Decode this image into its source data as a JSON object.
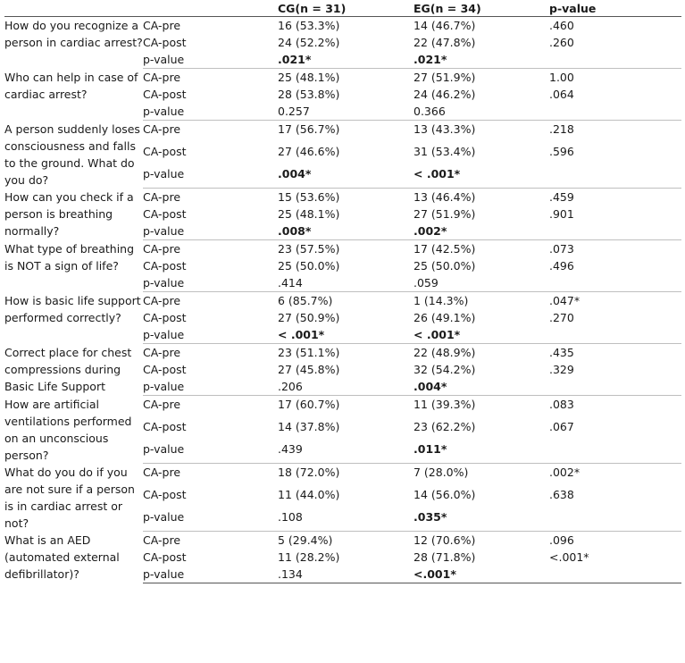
{
  "header": {
    "question": "",
    "label": "",
    "cg": "CG(n = 31)",
    "eg": "EG(n = 34)",
    "p": "p-value"
  },
  "questions": [
    {
      "text": "How do you recognize a person in cardiac arrest?",
      "rows": [
        {
          "label": "CA-pre",
          "cg": "16 (53.3%)",
          "eg": "14 (46.7%)",
          "p": ".460",
          "cg_bold": false,
          "eg_bold": false
        },
        {
          "label": "CA-post",
          "cg": "24 (52.2%)",
          "eg": "22 (47.8%)",
          "p": ".260",
          "cg_bold": false,
          "eg_bold": false
        },
        {
          "label": "p-value",
          "cg": ".021*",
          "eg": ".021*",
          "p": "",
          "cg_bold": true,
          "eg_bold": true
        }
      ]
    },
    {
      "text": "Who can help in case of cardiac arrest?",
      "rows": [
        {
          "label": "CA-pre",
          "cg": "25 (48.1%)",
          "eg": "27 (51.9%)",
          "p": "1.00",
          "cg_bold": false,
          "eg_bold": false
        },
        {
          "label": "CA-post",
          "cg": "28 (53.8%)",
          "eg": "24 (46.2%)",
          "p": ".064",
          "cg_bold": false,
          "eg_bold": false
        },
        {
          "label": "p-value",
          "cg": "0.257",
          "eg": "0.366",
          "p": "",
          "cg_bold": false,
          "eg_bold": false
        }
      ]
    },
    {
      "text": "A person suddenly loses consciousness and falls to the ground. What do you do?",
      "rows": [
        {
          "label": "CA-pre",
          "cg": "17 (56.7%)",
          "eg": "13 (43.3%)",
          "p": ".218",
          "cg_bold": false,
          "eg_bold": false
        },
        {
          "label": "CA-post",
          "cg": "27 (46.6%)",
          "eg": "31 (53.4%)",
          "p": ".596",
          "cg_bold": false,
          "eg_bold": false
        },
        {
          "label": "p-value",
          "cg": ".004*",
          "eg": "< .001*",
          "p": "",
          "cg_bold": true,
          "eg_bold": true
        }
      ]
    },
    {
      "text": "How can you check if a person is breathing normally?",
      "rows": [
        {
          "label": "CA-pre",
          "cg": "15 (53.6%)",
          "eg": "13 (46.4%)",
          "p": ".459",
          "cg_bold": false,
          "eg_bold": false
        },
        {
          "label": "CA-post",
          "cg": "25 (48.1%)",
          "eg": "27 (51.9%)",
          "p": ".901",
          "cg_bold": false,
          "eg_bold": false
        },
        {
          "label": "p-value",
          "cg": ".008*",
          "eg": ".002*",
          "p": "",
          "cg_bold": true,
          "eg_bold": true
        }
      ]
    },
    {
      "text": "What type of breathing is NOT a sign of life?",
      "rows": [
        {
          "label": "CA-pre",
          "cg": "23 (57.5%)",
          "eg": "17 (42.5%)",
          "p": ".073",
          "cg_bold": false,
          "eg_bold": false
        },
        {
          "label": "CA-post",
          "cg": "25 (50.0%)",
          "eg": "25 (50.0%)",
          "p": ".496",
          "cg_bold": false,
          "eg_bold": false
        },
        {
          "label": "p-value",
          "cg": ".414",
          "eg": ".059",
          "p": "",
          "cg_bold": false,
          "eg_bold": false
        }
      ]
    },
    {
      "text": "How is basic life support performed correctly?",
      "rows": [
        {
          "label": "CA-pre",
          "cg": "6 (85.7%)",
          "eg": "1 (14.3%)",
          "p": ".047*",
          "cg_bold": false,
          "eg_bold": false
        },
        {
          "label": "CA-post",
          "cg": "27 (50.9%)",
          "eg": "26 (49.1%)",
          "p": ".270",
          "cg_bold": false,
          "eg_bold": false
        },
        {
          "label": "p-value",
          "cg": "< .001*",
          "eg": "< .001*",
          "p": "",
          "cg_bold": true,
          "eg_bold": true
        }
      ]
    },
    {
      "text": "Correct place for chest compressions during Basic Life Support",
      "rows": [
        {
          "label": "CA-pre",
          "cg": "23 (51.1%)",
          "eg": "22 (48.9%)",
          "p": ".435",
          "cg_bold": false,
          "eg_bold": false
        },
        {
          "label": "CA-post",
          "cg": "27 (45.8%)",
          "eg": "32 (54.2%)",
          "p": ".329",
          "cg_bold": false,
          "eg_bold": false
        },
        {
          "label": "p-value",
          "cg": ".206",
          "eg": ".004*",
          "p": "",
          "cg_bold": false,
          "eg_bold": true
        }
      ]
    },
    {
      "text": "How are artificial ventilations performed on an unconscious person?",
      "rows": [
        {
          "label": "CA-pre",
          "cg": "17 (60.7%)",
          "eg": "11 (39.3%)",
          "p": ".083",
          "cg_bold": false,
          "eg_bold": false
        },
        {
          "label": "CA-post",
          "cg": "14 (37.8%)",
          "eg": "23 (62.2%)",
          "p": ".067",
          "cg_bold": false,
          "eg_bold": false
        },
        {
          "label": "p-value",
          "cg": ".439",
          "eg": ".011*",
          "p": "",
          "cg_bold": false,
          "eg_bold": true
        }
      ]
    },
    {
      "text": "What do you do if you are not sure if a person is in cardiac arrest or not?",
      "rows": [
        {
          "label": "CA-pre",
          "cg": "18 (72.0%)",
          "eg": "7 (28.0%)",
          "p": ".002*",
          "cg_bold": false,
          "eg_bold": false
        },
        {
          "label": "CA-post",
          "cg": "11 (44.0%)",
          "eg": "14 (56.0%)",
          "p": ".638",
          "cg_bold": false,
          "eg_bold": false
        },
        {
          "label": "p-value",
          "cg": ".108",
          "eg": ".035*",
          "p": "",
          "cg_bold": false,
          "eg_bold": true
        }
      ]
    },
    {
      "text": "What is an AED (automated external defibrillator)?",
      "rows": [
        {
          "label": "CA-pre",
          "cg": "5 (29.4%)",
          "eg": "12 (70.6%)",
          "p": ".096",
          "cg_bold": false,
          "eg_bold": false
        },
        {
          "label": "CA-post",
          "cg": "11 (28.2%)",
          "eg": "28 (71.8%)",
          "p": "<.001*",
          "cg_bold": false,
          "eg_bold": false
        },
        {
          "label": "p-value",
          "cg": ".134",
          "eg": "<.001*",
          "p": "",
          "cg_bold": false,
          "eg_bold": true
        }
      ]
    }
  ]
}
